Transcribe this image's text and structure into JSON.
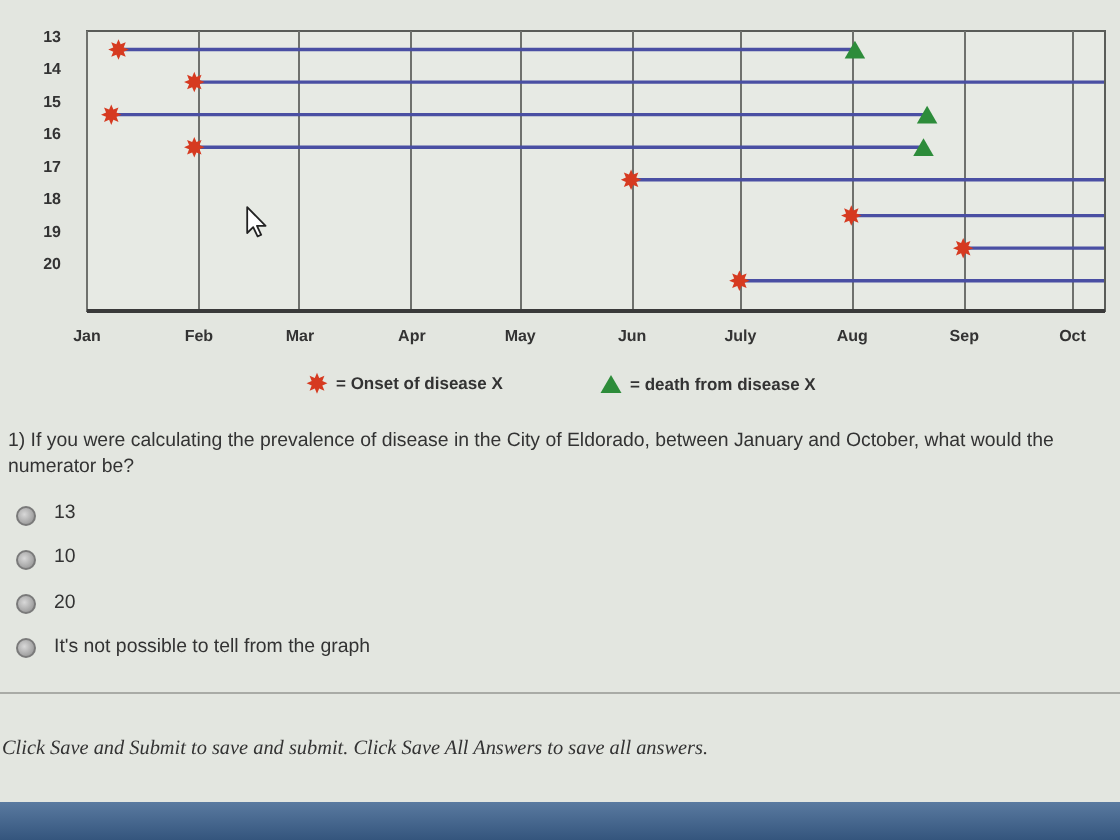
{
  "chart_data": {
    "type": "scatter",
    "xlim": [
      "--01-01",
      "--10-10"
    ],
    "xticks": [
      {
        "value": "--01-01",
        "label": "Jan"
      },
      {
        "value": "--02-01",
        "label": "Feb"
      },
      {
        "value": "--03-01",
        "label": "Mar"
      },
      {
        "value": "--04-01",
        "label": "Apr"
      },
      {
        "value": "--05-01",
        "label": "May"
      },
      {
        "value": "--06-01",
        "label": "Jun"
      },
      {
        "value": "--07-01",
        "label": "July"
      },
      {
        "value": "--08-01",
        "label": "Aug"
      },
      {
        "value": "--09-01",
        "label": "Sep"
      },
      {
        "value": "--10-01",
        "label": "Oct"
      }
    ],
    "ylim": [
      21.4,
      12.8
    ],
    "yticks": [
      13,
      14,
      15,
      16,
      17,
      18,
      19,
      20
    ],
    "grid": "x",
    "legend": "bottom",
    "annotations": [
      "1) If you were calculating the prevalence of disease in the City of Eldorado, between January and October, what would the numerator be?",
      "13",
      "10",
      "20",
      "It's not possible to tell from the graph",
      "Click Save and Submit to save and submit. Click Save All Answers to save all answers."
    ],
    "series": [
      {
        "type": "line",
        "color": "#4a4fa3",
        "x": [
          "--01-10",
          "--08-02"
        ],
        "values": [
          13.4,
          13.4
        ]
      },
      {
        "type": "line",
        "color": "#4a4fa3",
        "x": [
          "--01-31",
          "--10-10"
        ],
        "values": [
          14.4,
          14.4
        ]
      },
      {
        "type": "line",
        "color": "#4a4fa3",
        "x": [
          "--01-08",
          "--08-22"
        ],
        "values": [
          15.4,
          15.4
        ]
      },
      {
        "type": "line",
        "color": "#4a4fa3",
        "x": [
          "--01-31",
          "--08-21"
        ],
        "values": [
          16.4,
          16.4
        ]
      },
      {
        "type": "line",
        "color": "#4a4fa3",
        "x": [
          "--06-01",
          "--10-10"
        ],
        "values": [
          17.4,
          17.4
        ]
      },
      {
        "type": "line",
        "color": "#4a4fa3",
        "x": [
          "--08-01",
          "--10-10"
        ],
        "values": [
          18.5,
          18.5
        ]
      },
      {
        "type": "line",
        "color": "#4a4fa3",
        "x": [
          "--09-01",
          "--10-10"
        ],
        "values": [
          19.5,
          19.5
        ]
      },
      {
        "type": "line",
        "color": "#4a4fa3",
        "x": [
          "--07-01",
          "--10-10"
        ],
        "values": [
          20.5,
          20.5
        ]
      },
      {
        "name": "= Onset of disease X",
        "marker": "star",
        "color": "#d63a20",
        "x": [
          "--01-10",
          "--01-31",
          "--01-08",
          "--01-31",
          "--06-01",
          "--08-01",
          "--09-01",
          "--07-01"
        ],
        "values": [
          13.4,
          14.4,
          15.4,
          16.4,
          17.4,
          18.5,
          19.5,
          20.5
        ]
      },
      {
        "name": "= death from disease X",
        "marker": "triangle",
        "color": "#2d8c3a",
        "x": [
          "--08-02",
          "--08-22",
          "--08-21"
        ],
        "values": [
          13.4,
          15.4,
          16.4
        ]
      }
    ]
  }
}
